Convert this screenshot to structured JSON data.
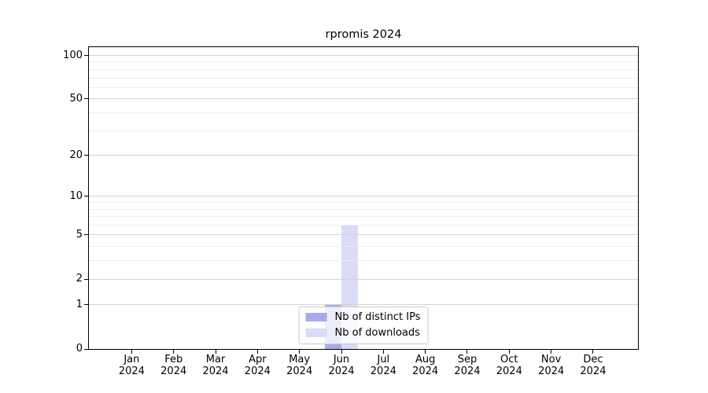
{
  "chart_data": {
    "type": "bar",
    "title": "rpromis 2024",
    "categories": [
      "Jan",
      "Feb",
      "Mar",
      "Apr",
      "May",
      "Jun",
      "Jul",
      "Aug",
      "Sep",
      "Oct",
      "Nov",
      "Dec"
    ],
    "category_year": "2024",
    "series": [
      {
        "name": "Nb of distinct IPs",
        "color": "#a8abeb",
        "values": [
          0,
          0,
          0,
          0,
          0,
          1,
          0,
          0,
          0,
          0,
          0,
          0
        ]
      },
      {
        "name": "Nb of downloads",
        "color": "#d9dbf8",
        "values": [
          0,
          0,
          0,
          0,
          0,
          6,
          0,
          0,
          0,
          0,
          0,
          0
        ]
      }
    ],
    "y_axis": {
      "scale": "log1p",
      "major_ticks": [
        0,
        1,
        2,
        5,
        10,
        20,
        50,
        100
      ],
      "minor_ticks": [
        3,
        4,
        6,
        7,
        8,
        9,
        30,
        40,
        60,
        70,
        80,
        90
      ],
      "ylim": [
        0,
        114
      ]
    },
    "legend": {
      "position": "lower center",
      "entries": [
        "Nb of distinct IPs",
        "Nb of downloads"
      ]
    },
    "grid": true,
    "xlabel": "",
    "ylabel": "",
    "colors": {
      "grid_major": "#d2d2d2",
      "grid_minor": "#ededed",
      "axis": "#000000",
      "background": "#ffffff"
    }
  }
}
